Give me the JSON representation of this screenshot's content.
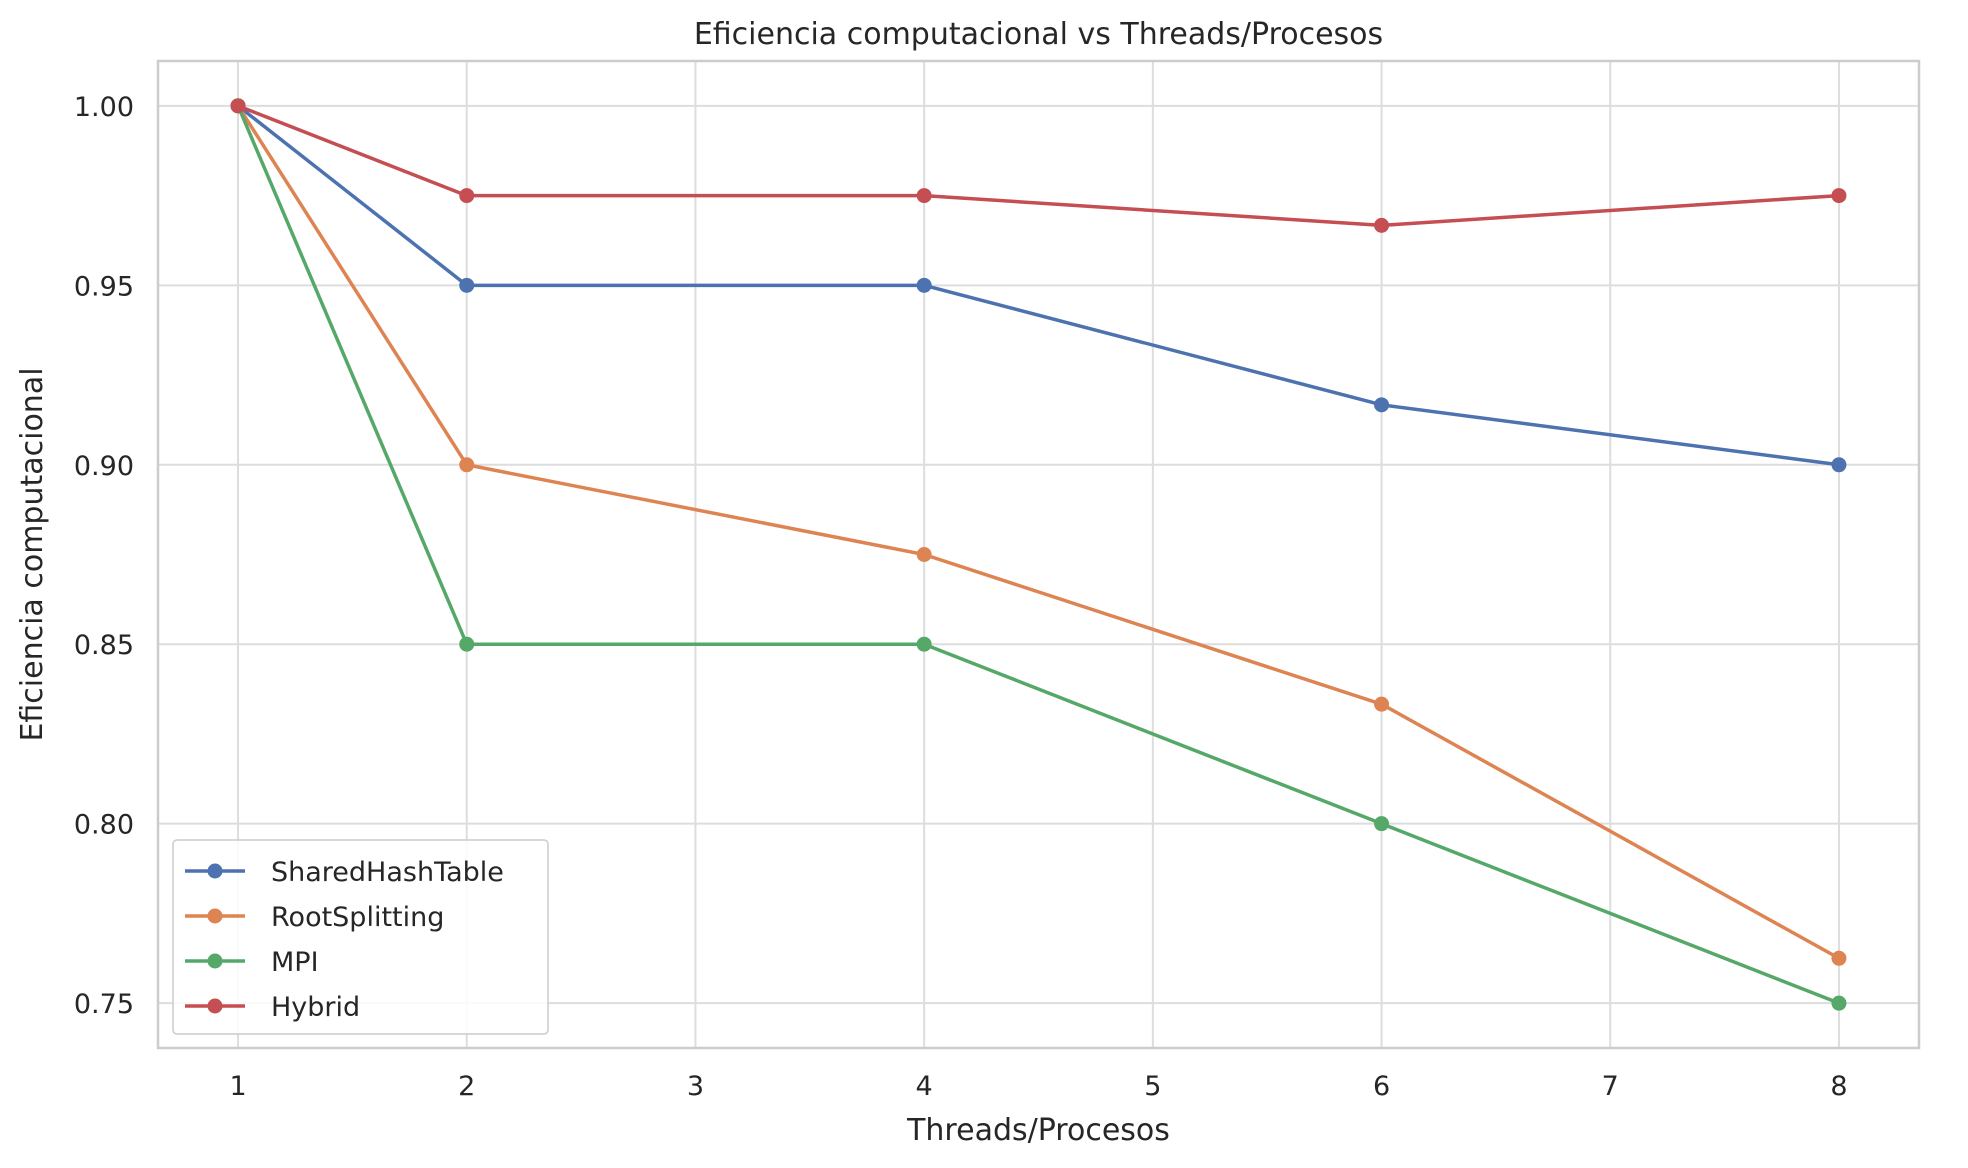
{
  "chart_data": {
    "type": "line",
    "title": "Eficiencia computacional vs Threads/Procesos",
    "xlabel": "Threads/Procesos",
    "ylabel": "Eficiencia computacional",
    "x": [
      1,
      2,
      4,
      6,
      8
    ],
    "xlim": [
      0.65,
      8.35
    ],
    "ylim": [
      0.7375,
      1.0125
    ],
    "x_ticks": [
      1,
      2,
      3,
      4,
      5,
      6,
      7,
      8
    ],
    "x_tick_labels": [
      "1",
      "2",
      "3",
      "4",
      "5",
      "6",
      "7",
      "8"
    ],
    "y_ticks": [
      0.75,
      0.8,
      0.85,
      0.9,
      0.95,
      1.0
    ],
    "y_tick_labels": [
      "0.75",
      "0.80",
      "0.85",
      "0.90",
      "0.95",
      "1.00"
    ],
    "grid": true,
    "legend_position": "lower-left",
    "series": [
      {
        "name": "SharedHashTable",
        "color": "#4C72B0",
        "values": [
          1.0,
          0.95,
          0.95,
          0.9167,
          0.9
        ]
      },
      {
        "name": "RootSplitting",
        "color": "#DD8452",
        "values": [
          1.0,
          0.9,
          0.875,
          0.8333,
          0.7625
        ]
      },
      {
        "name": "MPI",
        "color": "#55A868",
        "values": [
          1.0,
          0.85,
          0.85,
          0.8,
          0.75
        ]
      },
      {
        "name": "Hybrid",
        "color": "#C44E52",
        "values": [
          1.0,
          0.975,
          0.975,
          0.9667,
          0.975
        ]
      }
    ]
  }
}
